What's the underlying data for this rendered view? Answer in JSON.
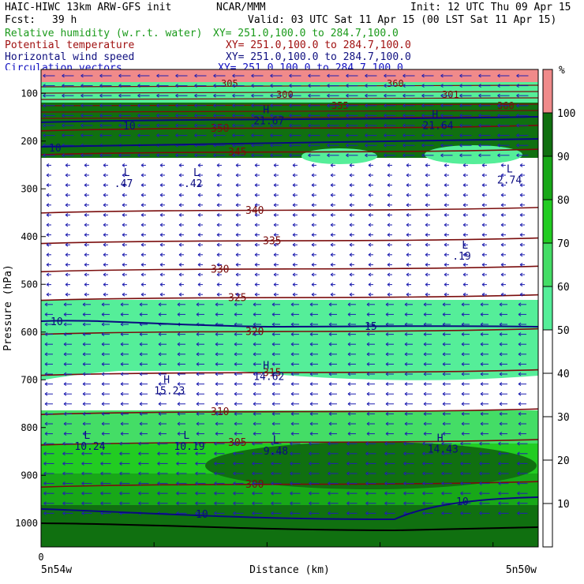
{
  "header": {
    "model": "HAIC-HIWC 13km ARW-GFS init",
    "org": "NCAR/MMM",
    "init": "Init: 12 UTC Thu 09 Apr 15",
    "fcst_label": "Fcst:",
    "fcst_value": "39 h",
    "valid": "Valid: 03 UTC Sat 11 Apr 15 (00 LST Sat 11 Apr 15)"
  },
  "fields": [
    {
      "name": "Relative humidity (w.r.t. water)",
      "xy": "XY= 251.0,100.0 to 284.7,100.0",
      "color": "#1a9a1a"
    },
    {
      "name": "Potential temperature",
      "xy": "XY= 251.0,100.0 to 284.7,100.0",
      "color": "#a01010"
    },
    {
      "name": "Horizontal wind speed",
      "xy": "XY= 251.0,100.0 to 284.7,100.0",
      "color": "#101080"
    },
    {
      "name": "Circulation vectors",
      "xy": "XY= 251.0,100.0 to 284.7,100.0",
      "color": "#1010c0"
    }
  ],
  "chart_data": {
    "type": "heatmap",
    "ylabel": "Pressure (hPa)",
    "xlabel": "Distance (km)",
    "x_start_label": "5n54w",
    "x_end_label": "5n50w",
    "x_zero_label": "0",
    "y_ticks": [
      100,
      200,
      300,
      400,
      500,
      600,
      700,
      800,
      900,
      1000
    ],
    "ylim": [
      1050,
      50
    ],
    "colorbar": {
      "unit": "%",
      "ticks": [
        10,
        20,
        30,
        40,
        50,
        60,
        70,
        80,
        90,
        100
      ],
      "bands": [
        {
          "from": 0,
          "to": 50,
          "color": "#ffffff"
        },
        {
          "from": 50,
          "to": 60,
          "color": "#55ee99"
        },
        {
          "from": 60,
          "to": 70,
          "color": "#44dd66"
        },
        {
          "from": 70,
          "to": 80,
          "color": "#22cc22"
        },
        {
          "from": 80,
          "to": 90,
          "color": "#18a818"
        },
        {
          "from": 90,
          "to": 100,
          "color": "#107010"
        },
        {
          "from": 100,
          "to": 110,
          "color": "#f08a8a"
        }
      ]
    },
    "theta_contours": [
      {
        "label": "350",
        "p": 172
      },
      {
        "label": "345",
        "p": 222
      },
      {
        "label": "340",
        "p": 344
      },
      {
        "label": "335",
        "p": 408
      },
      {
        "label": "330",
        "p": 467
      },
      {
        "label": "325",
        "p": 527
      },
      {
        "label": "320",
        "p": 598
      },
      {
        "label": "315",
        "p": 684
      },
      {
        "label": "310",
        "p": 766
      },
      {
        "label": "305",
        "p": 830
      },
      {
        "label": "300",
        "p": 918
      }
    ],
    "theta_labels_top": [
      "305",
      "300",
      "355",
      "360",
      "301",
      "360"
    ],
    "wind_extrema": [
      {
        "kind": "L",
        "value": ".47",
        "x": 0.16,
        "p": 280
      },
      {
        "kind": "L",
        "value": ".42",
        "x": 0.3,
        "p": 280
      },
      {
        "kind": "L",
        "value": "2.74",
        "x": 0.93,
        "p": 272
      },
      {
        "kind": "L",
        "value": ".19",
        "x": 0.84,
        "p": 432
      },
      {
        "kind": "H",
        "value": "14.62",
        "x": 0.44,
        "p": 684
      },
      {
        "kind": "H",
        "value": "15.23",
        "x": 0.24,
        "p": 714
      },
      {
        "kind": "L",
        "value": "10.24",
        "x": 0.08,
        "p": 830
      },
      {
        "kind": "L",
        "value": "10.19",
        "x": 0.28,
        "p": 830
      },
      {
        "kind": "L",
        "value": "9.48",
        "x": 0.46,
        "p": 840
      },
      {
        "kind": "H",
        "value": "14.43",
        "x": 0.79,
        "p": 836
      },
      {
        "kind": "H",
        "value": "21.64",
        "x": 0.78,
        "p": 158
      },
      {
        "kind": "H",
        "value": "21.67",
        "x": 0.44,
        "p": 148
      }
    ],
    "wind_contour_labels": [
      "10",
      "10",
      "15",
      "10",
      "10",
      "10"
    ]
  }
}
